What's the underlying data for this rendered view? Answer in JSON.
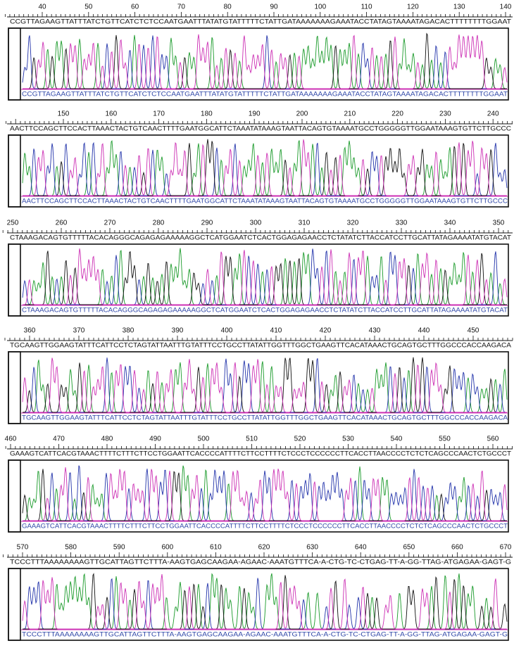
{
  "panels": [
    {
      "ticks": [
        "40",
        "50",
        "60",
        "70",
        "80",
        "90",
        "100",
        "110",
        "120",
        "130",
        "140"
      ],
      "sequence": "CCGTTAGAAGTTATTTATCTGTTCATCTCTCCAATGAATTTATATGTATTTTTCTATTGATAAAAAAAGAAATACCTATAGTAAAATAGACACTTTTTTTTGGAAT"
    },
    {
      "ticks": [
        "150",
        "160",
        "170",
        "180",
        "190",
        "200",
        "210",
        "220",
        "230",
        "240"
      ],
      "sequence": "AACTTCCAGCTTCCACTTAAACTACTGTCAACTTTTGAATGGCATTCTAAATATAAAGTAATTACAGTGTAAAATGCCTGGGGGTTGGAATAAAGTGTTCTTGCCC"
    },
    {
      "ticks": [
        "250",
        "260",
        "270",
        "280",
        "290",
        "300",
        "310",
        "320",
        "330",
        "340",
        "350"
      ],
      "sequence": "CTAAAGACAGTGTTTTTACACAGGGCAGAGAGAAAAAGGCTCATGGAATCTCACTGGAGAGAACCTCTATATCTTACCATCCTTGCATTATAGAAAATATGTACAT"
    },
    {
      "ticks": [
        "360",
        "370",
        "380",
        "390",
        "400",
        "410",
        "420",
        "430",
        "440",
        "450"
      ],
      "sequence": "TGCAAGTTGGAAGTATTTCATTCCTCTAGTATTAATTTGTATTTCCTGCCTTATATTGGTTTGGCTGAAGTTCACATAAACTGCAGTGCTTTGGCCCACCAAGACA"
    },
    {
      "ticks": [
        "460",
        "470",
        "480",
        "490",
        "500",
        "510",
        "520",
        "530",
        "540",
        "550",
        "560"
      ],
      "sequence": "GAAAGTCATTCACGTAAACTTTTCTTTCTTCCTGGAATTCACCCCATTTTCTTCCTTTTCTCCCTCCCCCCTTCACCTTAACCCCTCTCTCAGCCCAACTCTGCCCT"
    },
    {
      "ticks": [
        "570",
        "580",
        "590",
        "600",
        "610",
        "620",
        "630",
        "640",
        "650",
        "660",
        "670"
      ],
      "sequence": "TCCCTTTAAAAAAAAGTTGCATTAGTTCTTTA-AAGTGAGCAAGAA-AGAAC-AAATGTTTCA-A-CTG-TC-CTGAG-TT-A-GG-TTAG-ATGAGAA-GAGT-G"
    }
  ]
}
